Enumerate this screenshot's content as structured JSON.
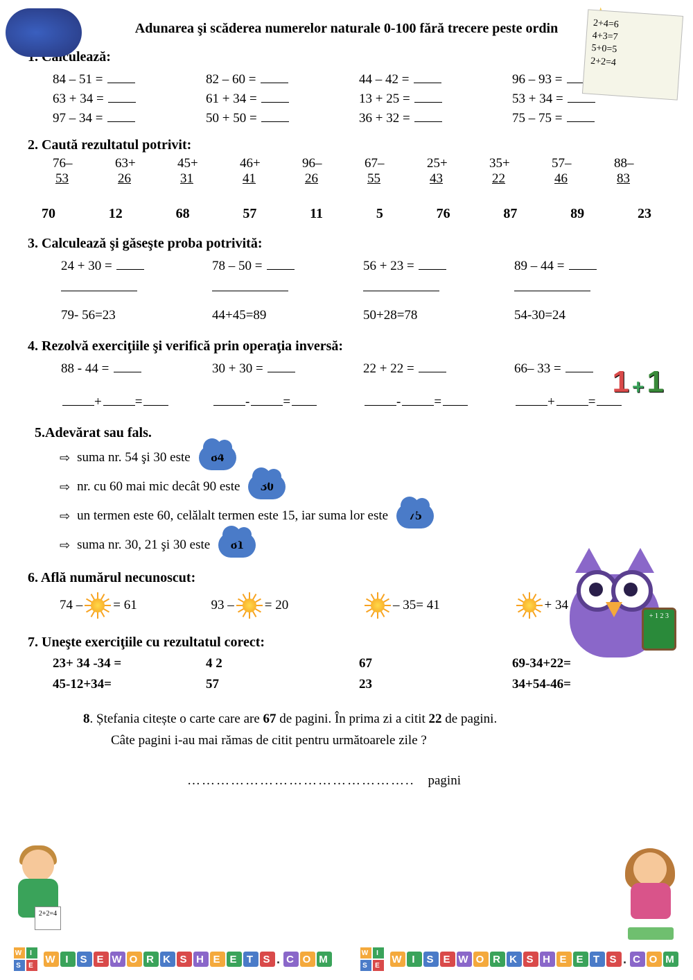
{
  "title": "Adunarea şi scăderea numerelor naturale  0-100  fără trecere peste ordin",
  "sticky_note": [
    "2+4=6",
    "4+3=7",
    "5+0=5",
    "2+2=4"
  ],
  "s1": {
    "head": "1. Calculează:",
    "rows": [
      [
        "84 – 51 =",
        "82 – 60 =",
        "44 – 42 =",
        "96 – 93 ="
      ],
      [
        "63 + 34 =",
        "61 + 34 =",
        "13 + 25 =",
        "53 + 34 ="
      ],
      [
        "97 – 34 =",
        "50 + 50 =",
        "36 + 32 =",
        "75 – 75 ="
      ]
    ]
  },
  "s2": {
    "head": "2. Caută  rezultatul potrivit:",
    "cols": [
      {
        "top": "76–",
        "bot": "53"
      },
      {
        "top": "63+",
        "bot": "26"
      },
      {
        "top": "45+",
        "bot": "31"
      },
      {
        "top": "46+",
        "bot": "41"
      },
      {
        "top": "96–",
        "bot": "26"
      },
      {
        "top": "67–",
        "bot": "55"
      },
      {
        "top": "25+",
        "bot": "43"
      },
      {
        "top": "35+",
        "bot": "22"
      },
      {
        "top": "57–",
        "bot": "46"
      },
      {
        "top": "88–",
        "bot": "83"
      }
    ],
    "answers": [
      "70",
      "12",
      "68",
      "57",
      "11",
      "5",
      "76",
      "87",
      "89",
      "23"
    ]
  },
  "s3": {
    "head": "3.  Calculează şi găseşte proba potrivită:",
    "exprs": [
      "24 + 30 =",
      "78 – 50 =",
      "56 + 23 =",
      "89 – 44 ="
    ],
    "checks": [
      "79- 56=23",
      "44+45=89",
      "50+28=78",
      "54-30=24"
    ]
  },
  "s4": {
    "head": "4. Rezolvă exerciţiile şi verifică prin operaţia inversă:",
    "exprs": [
      "88 - 44 =",
      "30 + 30 =",
      "22 + 22 =",
      "66– 33 ="
    ],
    "ops": [
      "+",
      "-",
      "-",
      "+"
    ]
  },
  "s5": {
    "head": "5.Adevărat sau fals.",
    "items": [
      {
        "text": "suma nr. 54 şi 30 este",
        "val": "84"
      },
      {
        "text": "nr. cu 60 mai mic decât 90 este",
        "val": "30"
      },
      {
        "text": "un termen  este 60, celălalt termen  este 15, iar suma lor este",
        "val": "75"
      },
      {
        "text": "suma nr. 30, 21 şi 30 este",
        "val": "81"
      }
    ]
  },
  "s6": {
    "head": "6.  Află numărul necunoscut:",
    "eqs": [
      {
        "pre": "74 –",
        "post": "= 61"
      },
      {
        "pre": "93 –",
        "post": "= 20"
      },
      {
        "pre": "",
        "post": "– 35= 41"
      },
      {
        "pre": "",
        "post": "+ 34 = 59"
      }
    ]
  },
  "s7": {
    "head": "7. Uneşte exerciţiile cu rezultatul corect:",
    "rows": [
      [
        "23+ 34 -34 =",
        "4 2",
        "67",
        "69-34+22="
      ],
      [
        "45-12+34=",
        "57",
        "23",
        "34+54-46="
      ]
    ]
  },
  "s8": {
    "num": "8",
    "text1_a": ". Ștefania  citește o carte care are ",
    "text1_b": "67",
    "text1_c": " de pagini. În prima zi a citit ",
    "text1_d": "22",
    "text1_e": " de pagini.",
    "text2": "Câte pagini i-au mai rămas  de citit pentru următoarele zile ?",
    "answer_label": "pagini"
  },
  "owl_board": "+\n1\n2\n3",
  "footer": {
    "text": "WISEWORKSHEETS.COM",
    "logo": [
      "W",
      "I",
      "S",
      "E"
    ],
    "logo_colors": [
      "#f4a93c",
      "#3aa35a",
      "#4a7bc8",
      "#d94a4a"
    ],
    "letter_colors": [
      "#f4a93c",
      "#3aa35a",
      "#4a7bc8",
      "#d94a4a",
      "#8a67c9",
      "#f4a93c",
      "#3aa35a",
      "#4a7bc8",
      "#d94a4a",
      "#8a67c9",
      "#f4a93c",
      "#3aa35a",
      "#4a7bc8",
      "#d94a4a",
      "#555",
      "#8a67c9",
      "#f4a93c",
      "#3aa35a"
    ]
  },
  "colors": {
    "cloud": "#4a7bc8",
    "owl": "#8a67c9",
    "sun_inner": "#ffd94a",
    "sun_outer": "#f7a321"
  }
}
